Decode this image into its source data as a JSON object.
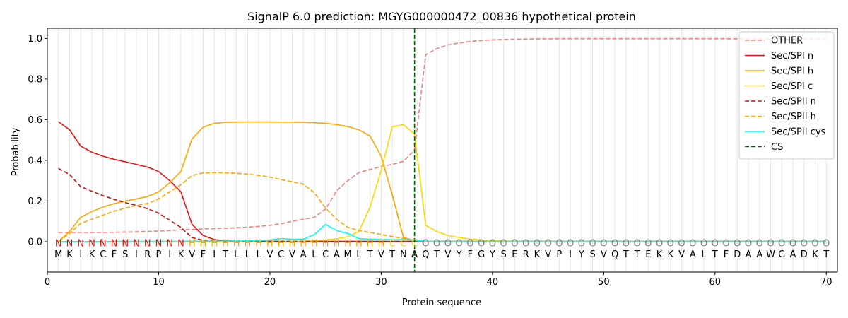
{
  "chart_data": {
    "type": "line",
    "title": "SignalP 6.0 prediction: MGYG000000472_00836 hypothetical protein",
    "xlabel": "Protein sequence",
    "ylabel": "Probability",
    "xlim": [
      0,
      71
    ],
    "ylim": [
      -0.15,
      1.05
    ],
    "xticks": [
      0,
      10,
      20,
      30,
      40,
      50,
      60,
      70
    ],
    "yticks": [
      0.0,
      0.2,
      0.4,
      0.6,
      0.8,
      1.0
    ],
    "xtick_labels": [
      "0",
      "10",
      "20",
      "30",
      "40",
      "50",
      "60",
      "70"
    ],
    "ytick_labels": [
      "0.0",
      "0.2",
      "0.4",
      "0.6",
      "0.8",
      "1.0"
    ],
    "grid": "vertical lines at each residue",
    "legend_position": "top-right",
    "cleavage_site": 33,
    "sequence": [
      "M",
      "K",
      "I",
      "K",
      "C",
      "F",
      "S",
      "I",
      "R",
      "P",
      "I",
      "K",
      "V",
      "F",
      "I",
      "T",
      "L",
      "L",
      "L",
      "V",
      "C",
      "V",
      "A",
      "L",
      "C",
      "A",
      "M",
      "L",
      "T",
      "V",
      "T",
      "N",
      "A",
      "Q",
      "T",
      "V",
      "Y",
      "F",
      "G",
      "Y",
      "S",
      "E",
      "R",
      "K",
      "V",
      "P",
      "I",
      "Y",
      "S",
      "V",
      "Q",
      "T",
      "T",
      "E",
      "K",
      "K",
      "V",
      "A",
      "L",
      "T",
      "F",
      "D",
      "A",
      "A",
      "W",
      "G",
      "A",
      "D",
      "K",
      "T"
    ],
    "labels": [
      "N",
      "N",
      "N",
      "N",
      "N",
      "N",
      "N",
      "N",
      "N",
      "N",
      "N",
      "N",
      "H",
      "H",
      "H",
      "H",
      "H",
      "H",
      "H",
      "H",
      "H",
      "H",
      "H",
      "H",
      "H",
      "H",
      "H",
      "H",
      "H",
      "H",
      "C",
      "C",
      "C",
      "O",
      "O",
      "O",
      "O",
      "O",
      "O",
      "O",
      "O",
      "O",
      "O",
      "O",
      "O",
      "O",
      "O",
      "O",
      "O",
      "O",
      "O",
      "O",
      "O",
      "O",
      "O",
      "O",
      "O",
      "O",
      "O",
      "O",
      "O",
      "O",
      "O",
      "O",
      "O",
      "O",
      "O",
      "O",
      "O",
      "O"
    ],
    "label_colors": {
      "N": "#ff0000",
      "H": "#ffa500",
      "C": "#ffd700",
      "O": "#808080"
    },
    "series": [
      {
        "name": "OTHER",
        "color": "#f08080",
        "dash": true,
        "values": [
          0.045,
          0.045,
          0.045,
          0.045,
          0.045,
          0.046,
          0.047,
          0.048,
          0.05,
          0.052,
          0.055,
          0.058,
          0.06,
          0.062,
          0.064,
          0.066,
          0.068,
          0.071,
          0.075,
          0.08,
          0.088,
          0.1,
          0.11,
          0.12,
          0.16,
          0.25,
          0.3,
          0.34,
          0.355,
          0.37,
          0.38,
          0.395,
          0.45,
          0.92,
          0.95,
          0.968,
          0.978,
          0.985,
          0.99,
          0.993,
          0.995,
          0.996,
          0.997,
          0.998,
          0.998,
          0.999,
          0.999,
          0.999,
          0.999,
          0.999,
          0.999,
          0.999,
          0.999,
          0.999,
          0.999,
          0.999,
          0.999,
          0.999,
          0.999,
          0.999,
          0.999,
          0.998,
          0.998,
          0.998,
          0.998,
          0.998,
          0.998,
          0.998,
          0.998,
          0.998
        ]
      },
      {
        "name": "Sec/SPI n",
        "color": "#ee1111",
        "dash": false,
        "values": [
          0.59,
          0.55,
          0.47,
          0.44,
          0.42,
          0.405,
          0.393,
          0.38,
          0.367,
          0.345,
          0.3,
          0.245,
          0.085,
          0.03,
          0.01,
          0.004,
          0.002,
          0.001,
          0.001,
          0.001,
          0.001,
          0.001,
          0.001,
          0.001,
          0.001,
          0.001,
          0.001,
          0.001,
          0.001,
          0.001,
          0.001,
          0.001,
          0.001,
          0.001,
          0.001,
          0.001,
          0.001,
          0.001,
          0.001,
          0.001,
          0.001,
          0.001,
          0.001,
          0.001,
          0.001,
          0.001,
          0.001,
          0.001,
          0.001,
          0.001,
          0.001,
          0.001,
          0.001,
          0.001,
          0.001,
          0.001,
          0.001,
          0.001,
          0.001,
          0.001,
          0.001,
          0.001,
          0.001,
          0.001,
          0.001,
          0.001,
          0.001,
          0.001,
          0.001,
          0.001
        ]
      },
      {
        "name": "Sec/SPI h",
        "color": "#ffa500",
        "dash": false,
        "values": [
          0.0,
          0.05,
          0.12,
          0.148,
          0.17,
          0.187,
          0.2,
          0.21,
          0.222,
          0.245,
          0.29,
          0.345,
          0.505,
          0.563,
          0.582,
          0.587,
          0.588,
          0.589,
          0.589,
          0.589,
          0.588,
          0.588,
          0.587,
          0.585,
          0.582,
          0.576,
          0.566,
          0.55,
          0.52,
          0.42,
          0.23,
          0.02,
          0.005,
          0.002,
          0.001,
          0.001,
          0.001,
          0.001,
          0.001,
          0.001,
          0.001,
          0.001,
          0.001,
          0.001,
          0.001,
          0.001,
          0.001,
          0.001,
          0.001,
          0.001,
          0.001,
          0.001,
          0.001,
          0.001,
          0.001,
          0.001,
          0.001,
          0.001,
          0.001,
          0.001,
          0.001,
          0.001,
          0.001,
          0.001,
          0.001,
          0.001,
          0.001,
          0.001,
          0.001,
          0.001
        ]
      },
      {
        "name": "Sec/SPI c",
        "color": "#ffd700",
        "dash": false,
        "values": [
          0.0,
          0.0,
          0.0,
          0.0,
          0.0,
          0.0,
          0.0,
          0.0,
          0.0,
          0.0,
          0.0,
          0.0,
          0.0,
          0.0,
          0.0,
          0.0,
          0.0,
          0.0,
          0.0,
          0.0,
          0.0,
          0.001,
          0.002,
          0.004,
          0.008,
          0.014,
          0.024,
          0.05,
          0.17,
          0.35,
          0.566,
          0.575,
          0.53,
          0.08,
          0.05,
          0.03,
          0.02,
          0.013,
          0.008,
          0.005,
          0.003,
          0.002,
          0.001,
          0.001,
          0.001,
          0.001,
          0.001,
          0.001,
          0.001,
          0.001,
          0.001,
          0.001,
          0.001,
          0.001,
          0.001,
          0.001,
          0.001,
          0.001,
          0.001,
          0.001,
          0.001,
          0.001,
          0.001,
          0.001,
          0.001,
          0.001,
          0.001,
          0.001,
          0.001,
          0.001
        ]
      },
      {
        "name": "Sec/SPII n",
        "color": "#cc1111",
        "dash": true,
        "values": [
          0.36,
          0.33,
          0.27,
          0.248,
          0.226,
          0.208,
          0.192,
          0.178,
          0.162,
          0.14,
          0.105,
          0.07,
          0.02,
          0.006,
          0.003,
          0.002,
          0.001,
          0.001,
          0.001,
          0.001,
          0.001,
          0.001,
          0.001,
          0.001,
          0.001,
          0.001,
          0.001,
          0.001,
          0.001,
          0.001,
          0.001,
          0.001,
          0.001,
          0.001,
          0.001,
          0.001,
          0.001,
          0.001,
          0.001,
          0.001,
          0.001,
          0.001,
          0.001,
          0.001,
          0.001,
          0.001,
          0.001,
          0.001,
          0.001,
          0.001,
          0.001,
          0.001,
          0.001,
          0.001,
          0.001,
          0.001,
          0.001,
          0.001,
          0.001,
          0.001,
          0.001,
          0.001,
          0.001,
          0.001,
          0.001,
          0.001,
          0.001,
          0.001,
          0.001,
          0.001
        ]
      },
      {
        "name": "Sec/SPII h",
        "color": "#ffa500",
        "dash": true,
        "values": [
          0.0,
          0.04,
          0.09,
          0.11,
          0.13,
          0.15,
          0.165,
          0.178,
          0.188,
          0.21,
          0.245,
          0.28,
          0.325,
          0.338,
          0.34,
          0.339,
          0.336,
          0.332,
          0.326,
          0.318,
          0.305,
          0.295,
          0.283,
          0.24,
          0.165,
          0.11,
          0.07,
          0.055,
          0.045,
          0.035,
          0.025,
          0.015,
          0.005,
          0.002,
          0.001,
          0.001,
          0.001,
          0.001,
          0.001,
          0.001,
          0.001,
          0.001,
          0.001,
          0.001,
          0.001,
          0.001,
          0.001,
          0.001,
          0.001,
          0.001,
          0.001,
          0.001,
          0.001,
          0.001,
          0.001,
          0.001,
          0.001,
          0.001,
          0.001,
          0.001,
          0.001,
          0.001,
          0.001,
          0.001,
          0.001,
          0.001,
          0.001,
          0.001,
          0.001,
          0.001
        ]
      },
      {
        "name": "Sec/SPII cys",
        "color": "#00ffff",
        "dash": false,
        "values": [
          0.0,
          0.0,
          0.0,
          0.0,
          0.0,
          0.001,
          0.001,
          0.001,
          0.001,
          0.001,
          0.001,
          0.001,
          0.002,
          0.002,
          0.002,
          0.003,
          0.003,
          0.004,
          0.005,
          0.008,
          0.015,
          0.012,
          0.012,
          0.035,
          0.085,
          0.055,
          0.04,
          0.015,
          0.012,
          0.01,
          0.01,
          0.01,
          0.007,
          0.002,
          0.001,
          0.001,
          0.001,
          0.001,
          0.001,
          0.001,
          0.001,
          0.001,
          0.001,
          0.001,
          0.001,
          0.001,
          0.001,
          0.001,
          0.001,
          0.001,
          0.001,
          0.001,
          0.001,
          0.001,
          0.001,
          0.001,
          0.001,
          0.001,
          0.001,
          0.001,
          0.001,
          0.001,
          0.001,
          0.001,
          0.001,
          0.001,
          0.001,
          0.001,
          0.001,
          0.001
        ]
      }
    ],
    "cs_legend": {
      "name": "CS",
      "color": "#006400",
      "dash": true
    }
  }
}
